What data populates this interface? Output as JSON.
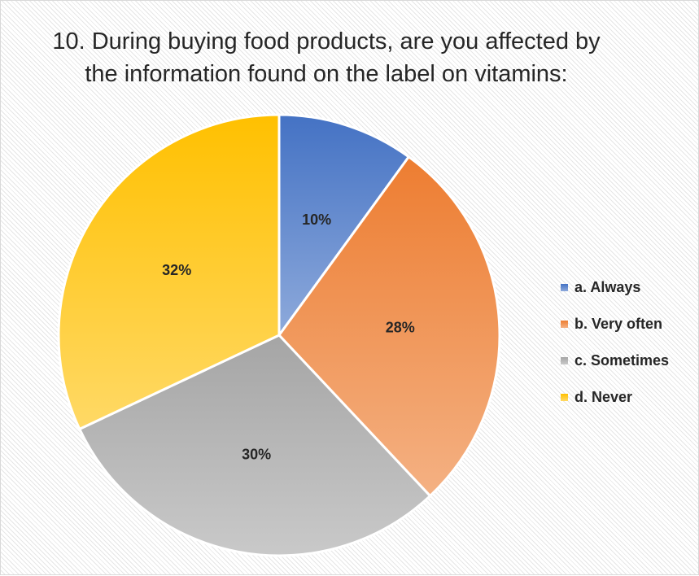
{
  "chart_data": {
    "type": "pie",
    "title": "10. During buying food products, are you affected by the information found on the label on vitamins:",
    "categories": [
      "a. Always",
      "b. Very often",
      "c. Sometimes",
      "d. Never"
    ],
    "values": [
      10,
      28,
      30,
      32
    ],
    "data_labels": [
      "10%",
      "28%",
      "30%",
      "32%"
    ],
    "colors": [
      "#4472c4",
      "#ed7d31",
      "#a5a5a5",
      "#ffc000"
    ],
    "colors_light": [
      "#8eaadb",
      "#f4b183",
      "#c9c9c9",
      "#ffd966"
    ],
    "legend_position": "right",
    "start": "top-clockwise"
  }
}
